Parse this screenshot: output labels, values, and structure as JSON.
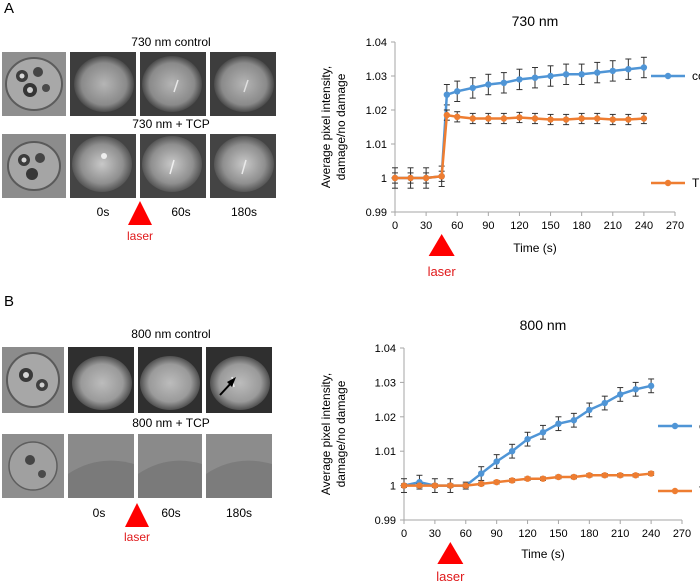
{
  "panels": [
    {
      "letter": "A",
      "row_labels": [
        "730  nm control",
        "730  nm + TCP"
      ],
      "time_labels": [
        "0s",
        "60s",
        "180s"
      ],
      "laser_label": "laser"
    },
    {
      "letter": "B",
      "row_labels": [
        "800  nm control",
        "800  nm + TCP"
      ],
      "time_labels": [
        "0s",
        "60s",
        "180s"
      ],
      "laser_label": "laser"
    }
  ],
  "colors": {
    "control": "#4f95d6",
    "tcp": "#ee7d31",
    "laser": "#ff0000",
    "axis": "#a6a6a6",
    "errbar": "#333333"
  },
  "chart_data": [
    {
      "type": "line",
      "title": "730 nm",
      "xlabel": "Time (s)",
      "ylabel_lines": [
        "Average  pixel intensity,",
        "damage/no damage"
      ],
      "x_ticks": [
        0,
        30,
        60,
        90,
        120,
        150,
        180,
        210,
        240,
        270
      ],
      "y_ticks": [
        0.99,
        1,
        1.01,
        1.02,
        1.03,
        1.04
      ],
      "y_tick_labels": [
        "0.99",
        "1",
        "1.01",
        "1.02",
        "1.03",
        "1.04"
      ],
      "xlim": [
        0,
        270
      ],
      "ylim": [
        0.99,
        1.04
      ],
      "laser_label": "laser",
      "series": [
        {
          "name": "control",
          "color": "#4f95d6",
          "x": [
            0,
            15,
            30,
            45,
            50,
            60,
            75,
            90,
            105,
            120,
            135,
            150,
            165,
            180,
            195,
            210,
            225,
            240
          ],
          "y": [
            1.0,
            1.0,
            1.0,
            1.0005,
            1.0245,
            1.0255,
            1.0265,
            1.0275,
            1.028,
            1.029,
            1.0295,
            1.03,
            1.0305,
            1.0305,
            1.031,
            1.0315,
            1.032,
            1.0325
          ],
          "err": [
            0.003,
            0.003,
            0.003,
            0.003,
            0.003,
            0.003,
            0.003,
            0.003,
            0.003,
            0.003,
            0.003,
            0.003,
            0.003,
            0.003,
            0.003,
            0.003,
            0.003,
            0.003
          ]
        },
        {
          "name": "TCP",
          "color": "#ee7d31",
          "x": [
            0,
            15,
            30,
            45,
            50,
            60,
            75,
            90,
            105,
            120,
            135,
            150,
            165,
            180,
            195,
            210,
            225,
            240
          ],
          "y": [
            1.0,
            1.0,
            1.0,
            1.0005,
            1.0185,
            1.018,
            1.0175,
            1.0175,
            1.0175,
            1.0178,
            1.0175,
            1.0172,
            1.0172,
            1.0175,
            1.0175,
            1.0172,
            1.0172,
            1.0175
          ],
          "err": [
            0.0015,
            0.0015,
            0.0015,
            0.0015,
            0.0015,
            0.0015,
            0.0015,
            0.0015,
            0.0015,
            0.0015,
            0.0015,
            0.0015,
            0.0015,
            0.0015,
            0.0015,
            0.0015,
            0.0015,
            0.0015
          ]
        }
      ]
    },
    {
      "type": "line",
      "title": "800 nm",
      "xlabel": "Time (s)",
      "ylabel_lines": [
        "Average  pixel intensity,",
        "damage/no damage"
      ],
      "x_ticks": [
        0,
        30,
        60,
        90,
        120,
        150,
        180,
        210,
        240,
        270
      ],
      "y_ticks": [
        0.99,
        1,
        1.01,
        1.02,
        1.03,
        1.04
      ],
      "y_tick_labels": [
        "0.99",
        "1",
        "1.01",
        "1.02",
        "1.03",
        "1.04"
      ],
      "xlim": [
        0,
        270
      ],
      "ylim": [
        0.99,
        1.04
      ],
      "laser_label": "laser",
      "series": [
        {
          "name": "control",
          "color": "#4f95d6",
          "x": [
            0,
            15,
            30,
            45,
            60,
            75,
            90,
            105,
            120,
            135,
            150,
            165,
            180,
            195,
            210,
            225,
            240
          ],
          "y": [
            1.0,
            1.001,
            1.0,
            1.0,
            1.0,
            1.0035,
            1.007,
            1.01,
            1.0135,
            1.0155,
            1.018,
            1.019,
            1.022,
            1.024,
            1.0265,
            1.028,
            1.029
          ],
          "err": [
            0.002,
            0.002,
            0.002,
            0.002,
            0.001,
            0.002,
            0.002,
            0.002,
            0.002,
            0.002,
            0.002,
            0.002,
            0.002,
            0.002,
            0.002,
            0.002,
            0.002
          ]
        },
        {
          "name": "TCP",
          "color": "#ee7d31",
          "x": [
            0,
            15,
            30,
            45,
            60,
            75,
            90,
            105,
            120,
            135,
            150,
            165,
            180,
            195,
            210,
            225,
            240
          ],
          "y": [
            1.0,
            1.0,
            1.0,
            1.0,
            1.0,
            1.0005,
            1.001,
            1.0015,
            1.002,
            1.002,
            1.0025,
            1.0025,
            1.003,
            1.003,
            1.003,
            1.003,
            1.0035
          ],
          "err": [
            0.0005,
            0.0005,
            0.0005,
            0.0005,
            0.0005,
            0.0005,
            0.0005,
            0.0005,
            0.0005,
            0.0005,
            0.0005,
            0.0005,
            0.0005,
            0.0005,
            0.0005,
            0.0005,
            0.0005
          ]
        }
      ]
    }
  ]
}
